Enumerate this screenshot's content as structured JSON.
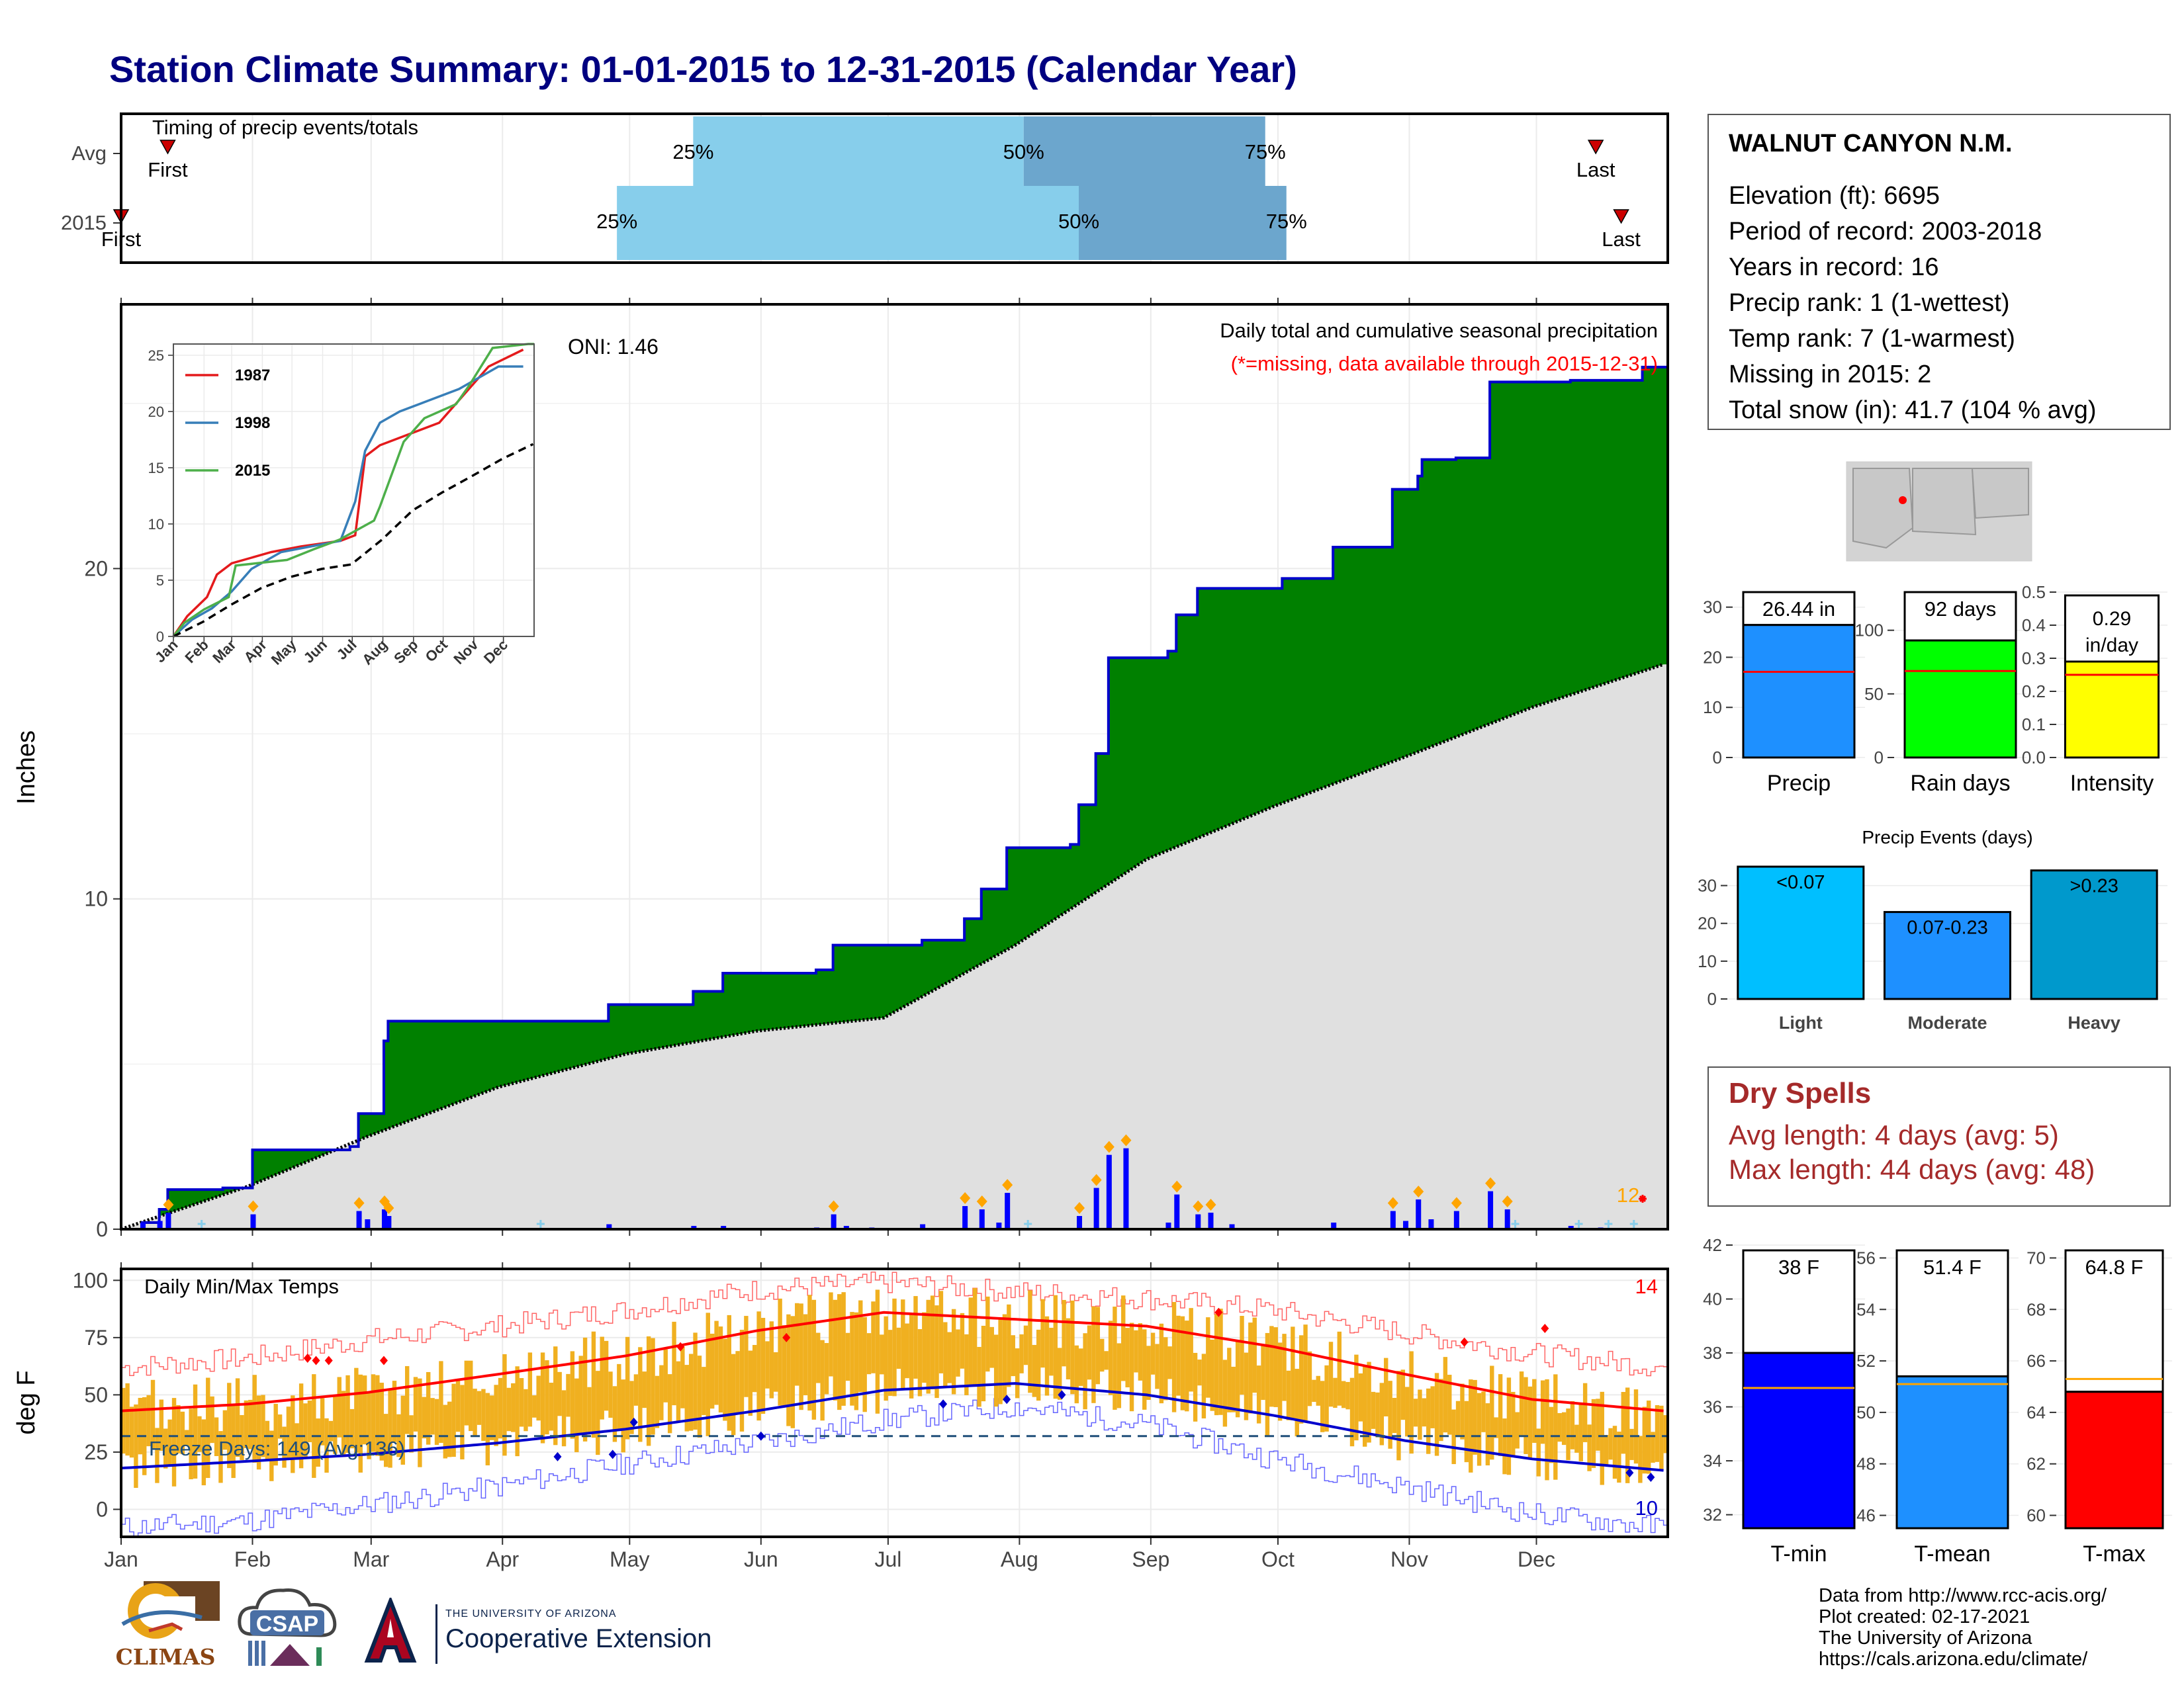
{
  "title": "Station Climate Summary: 01-01-2015 to 12-31-2015 (Calendar Year)",
  "station": {
    "name": "WALNUT CANYON N.M.",
    "lines": [
      "Elevation (ft): 6695",
      "Period of record: 2003-2018",
      "Years in record: 16",
      "Precip rank: 1 (1-wettest)",
      "Temp rank: 7 (1-warmest)",
      "Missing in 2015: 2",
      "Total snow (in): 41.7 (104 % avg)"
    ]
  },
  "dry_spells": {
    "title": "Dry Spells",
    "avg_length": "Avg length: 4 days (avg: 5)",
    "max_length": "Max length: 44 days (avg: 48)"
  },
  "credits": [
    "Data from http://www.rcc-acis.org/",
    "Plot created: 02-17-2021",
    "The University of Arizona",
    "https://cals.arizona.edu/climate/"
  ],
  "logos": {
    "climas": "CLIMAS",
    "csap": "CSAP",
    "ua_small": "THE UNIVERSITY OF ARIZONA",
    "ua_big": "Cooperative Extension"
  },
  "colors": {
    "title": "#000080",
    "cumulative_fill": "#008000",
    "normal_fill": "#e0e0e0",
    "precip_bar": "#0000ff",
    "temp_bar": "#f0b020",
    "tmax_line": "#ff0000",
    "tmin_line": "#0000cc",
    "light_bar": "#00bfff",
    "moderate_bar": "#1e90ff",
    "heavy_bar": "#0099cc",
    "precip_box": "#1e90ff",
    "raindays_box": "#00ff00",
    "intensity_box": "#ffff00",
    "tmin_box": "#0000ff",
    "tmean_box": "#1e90ff",
    "tmax_box": "#ff0000"
  },
  "months": [
    "Jan",
    "Feb",
    "Mar",
    "Apr",
    "May",
    "Jun",
    "Jul",
    "Aug",
    "Sep",
    "Oct",
    "Nov",
    "Dec"
  ],
  "chart_data": [
    {
      "type": "bar",
      "panel": "timing",
      "title": "Timing of precip events/totals",
      "rows": [
        "Avg",
        "2015"
      ],
      "markers": {
        "Avg": {
          "first_doy": 12,
          "last_doy": 349,
          "first_label": "First",
          "last_label": "Last"
        },
        "2015": {
          "first_doy": 1,
          "last_doy": 355,
          "first_label": "First",
          "last_label": "Last"
        }
      },
      "quartiles": {
        "Avg": {
          "q25_doy": 136,
          "q50_doy": 214,
          "q75_doy": 271
        },
        "2015": {
          "q25_doy": 118,
          "q50_doy": 227,
          "q75_doy": 276
        }
      },
      "quartile_labels": [
        "25%",
        "50%",
        "75%"
      ]
    },
    {
      "type": "area",
      "panel": "cumulative_precip",
      "title": "Daily total and cumulative seasonal precipitation",
      "subtitle": "(*=missing, data available through 2015-12-31)",
      "oni": "ONI: 1.46",
      "ylabel": "Inches",
      "ylim": [
        0,
        28
      ],
      "yticks": [
        0,
        10,
        20
      ],
      "missing_count_label": "12",
      "cumulative_2015_steps": [
        [
          1,
          0
        ],
        [
          6,
          0.2
        ],
        [
          10,
          0.6
        ],
        [
          12,
          1.2
        ],
        [
          25,
          1.25
        ],
        [
          32,
          2.4
        ],
        [
          55,
          2.5
        ],
        [
          57,
          3.5
        ],
        [
          63,
          5.7
        ],
        [
          64,
          6.3
        ],
        [
          116,
          6.8
        ],
        [
          136,
          7.2
        ],
        [
          143,
          7.75
        ],
        [
          165,
          7.85
        ],
        [
          169,
          8.6
        ],
        [
          190,
          8.75
        ],
        [
          200,
          9.4
        ],
        [
          204,
          10.3
        ],
        [
          210,
          11.55
        ],
        [
          225,
          11.65
        ],
        [
          227,
          12.85
        ],
        [
          231,
          14.4
        ],
        [
          234,
          17.3
        ],
        [
          248,
          17.5
        ],
        [
          250,
          18.6
        ],
        [
          255,
          19.4
        ],
        [
          275,
          19.7
        ],
        [
          287,
          20.65
        ],
        [
          301,
          22.4
        ],
        [
          307,
          22.8
        ],
        [
          308,
          23.3
        ],
        [
          316,
          23.35
        ],
        [
          324,
          25.65
        ],
        [
          343,
          25.7
        ],
        [
          360,
          26.1
        ],
        [
          366,
          26.44
        ]
      ],
      "normal_cumulative": [
        [
          1,
          0
        ],
        [
          31,
          1.3
        ],
        [
          59,
          2.8
        ],
        [
          90,
          4.3
        ],
        [
          120,
          5.3
        ],
        [
          151,
          6.0
        ],
        [
          181,
          6.4
        ],
        [
          212,
          8.6
        ],
        [
          243,
          11.2
        ],
        [
          273,
          12.8
        ],
        [
          304,
          14.3
        ],
        [
          334,
          15.8
        ],
        [
          365,
          17.1
        ]
      ],
      "daily_precip": [
        [
          6,
          0.2
        ],
        [
          10,
          0.25
        ],
        [
          12,
          0.5
        ],
        [
          32,
          0.45
        ],
        [
          57,
          0.55
        ],
        [
          59,
          0.3
        ],
        [
          63,
          0.6
        ],
        [
          64,
          0.4
        ],
        [
          116,
          0.15
        ],
        [
          136,
          0.1
        ],
        [
          143,
          0.1
        ],
        [
          165,
          0.05
        ],
        [
          169,
          0.45
        ],
        [
          172,
          0.1
        ],
        [
          178,
          0.05
        ],
        [
          190,
          0.15
        ],
        [
          200,
          0.7
        ],
        [
          204,
          0.6
        ],
        [
          208,
          0.2
        ],
        [
          210,
          1.1
        ],
        [
          227,
          0.4
        ],
        [
          231,
          1.25
        ],
        [
          234,
          2.25
        ],
        [
          238,
          2.45
        ],
        [
          248,
          0.2
        ],
        [
          250,
          1.05
        ],
        [
          255,
          0.45
        ],
        [
          258,
          0.5
        ],
        [
          263,
          0.15
        ],
        [
          287,
          0.2
        ],
        [
          301,
          0.55
        ],
        [
          304,
          0.25
        ],
        [
          307,
          0.9
        ],
        [
          310,
          0.3
        ],
        [
          316,
          0.55
        ],
        [
          324,
          1.15
        ],
        [
          328,
          0.6
        ],
        [
          343,
          0.1
        ],
        [
          350,
          0.05
        ]
      ],
      "inset": {
        "years": [
          "1987",
          "1998",
          "2015"
        ],
        "ylim": [
          0,
          26
        ],
        "yticks": [
          0,
          5,
          10,
          15,
          20,
          25
        ],
        "xticks": [
          "Jan",
          "Feb",
          "Mar",
          "Apr",
          "May",
          "Jun",
          "Jul",
          "Aug",
          "Sep",
          "Oct",
          "Nov",
          "Dec"
        ],
        "series": [
          {
            "name": "1987",
            "color": "#e41a1c",
            "values": [
              [
                1,
                0
              ],
              [
                15,
                1.8
              ],
              [
                35,
                3.5
              ],
              [
                45,
                5.5
              ],
              [
                60,
                6.5
              ],
              [
                80,
                7
              ],
              [
                100,
                7.5
              ],
              [
                130,
                8
              ],
              [
                170,
                8.5
              ],
              [
                185,
                9
              ],
              [
                195,
                16
              ],
              [
                210,
                17
              ],
              [
                240,
                18
              ],
              [
                270,
                19
              ],
              [
                300,
                22
              ],
              [
                320,
                24
              ],
              [
                355,
                25.5
              ]
            ]
          },
          {
            "name": "1998",
            "color": "#377eb8",
            "values": [
              [
                1,
                0
              ],
              [
                20,
                1.5
              ],
              [
                40,
                2.5
              ],
              [
                60,
                4
              ],
              [
                80,
                6
              ],
              [
                110,
                7.5
              ],
              [
                140,
                8
              ],
              [
                170,
                8.5
              ],
              [
                185,
                12
              ],
              [
                195,
                16.5
              ],
              [
                210,
                19
              ],
              [
                230,
                20
              ],
              [
                260,
                21
              ],
              [
                290,
                22
              ],
              [
                310,
                23
              ],
              [
                330,
                24
              ],
              [
                355,
                24
              ]
            ]
          },
          {
            "name": "2015",
            "color": "#4daf4a",
            "values": [
              [
                1,
                0
              ],
              [
                12,
                1.2
              ],
              [
                32,
                2.4
              ],
              [
                57,
                3.5
              ],
              [
                64,
                6.3
              ],
              [
                116,
                6.8
              ],
              [
                143,
                7.75
              ],
              [
                169,
                8.6
              ],
              [
                204,
                10.3
              ],
              [
                210,
                11.55
              ],
              [
                234,
                17.3
              ],
              [
                255,
                19.4
              ],
              [
                287,
                20.65
              ],
              [
                301,
                22.4
              ],
              [
                324,
                25.65
              ],
              [
                360,
                26.1
              ],
              [
                366,
                26.44
              ]
            ]
          },
          {
            "name": "avg",
            "color": "#000000",
            "dashed": true,
            "values": [
              [
                1,
                0
              ],
              [
                31,
                1.3
              ],
              [
                59,
                2.8
              ],
              [
                90,
                4.3
              ],
              [
                120,
                5.3
              ],
              [
                151,
                6.0
              ],
              [
                181,
                6.4
              ],
              [
                212,
                8.6
              ],
              [
                243,
                11.2
              ],
              [
                273,
                12.8
              ],
              [
                304,
                14.3
              ],
              [
                334,
                15.8
              ],
              [
                365,
                17.1
              ]
            ]
          }
        ]
      }
    },
    {
      "type": "line",
      "panel": "temperature",
      "title": "Daily Min/Max Temps",
      "ylabel": "deg F",
      "ylim": [
        -12,
        105
      ],
      "yticks": [
        0,
        25,
        50,
        75,
        100
      ],
      "freeze_days_label": "Freeze Days: 149 (Avg:136)",
      "freeze_line": 32,
      "missing_max_label": "14",
      "missing_min_label": "10",
      "normal_max": [
        [
          1,
          43
        ],
        [
          31,
          46
        ],
        [
          59,
          51
        ],
        [
          90,
          59
        ],
        [
          120,
          67
        ],
        [
          151,
          78
        ],
        [
          181,
          86
        ],
        [
          212,
          83
        ],
        [
          243,
          80
        ],
        [
          273,
          71
        ],
        [
          304,
          59
        ],
        [
          334,
          48
        ],
        [
          365,
          43
        ]
      ],
      "normal_min": [
        [
          1,
          18
        ],
        [
          31,
          21
        ],
        [
          59,
          24
        ],
        [
          90,
          29
        ],
        [
          120,
          35
        ],
        [
          151,
          43
        ],
        [
          181,
          52
        ],
        [
          212,
          55
        ],
        [
          243,
          50
        ],
        [
          273,
          41
        ],
        [
          304,
          30
        ],
        [
          334,
          22
        ],
        [
          365,
          17
        ]
      ],
      "record_max": [
        [
          1,
          62
        ],
        [
          31,
          66
        ],
        [
          59,
          74
        ],
        [
          90,
          80
        ],
        [
          120,
          87
        ],
        [
          151,
          96
        ],
        [
          181,
          99
        ],
        [
          212,
          95
        ],
        [
          243,
          92
        ],
        [
          273,
          87
        ],
        [
          304,
          77
        ],
        [
          334,
          68
        ],
        [
          365,
          62
        ]
      ],
      "record_min": [
        [
          1,
          -8
        ],
        [
          31,
          -5
        ],
        [
          59,
          2
        ],
        [
          90,
          10
        ],
        [
          120,
          20
        ],
        [
          151,
          29
        ],
        [
          181,
          39
        ],
        [
          212,
          45
        ],
        [
          243,
          37
        ],
        [
          273,
          22
        ],
        [
          304,
          10
        ],
        [
          334,
          -2
        ],
        [
          365,
          -8
        ]
      ]
    },
    {
      "type": "bar",
      "panel": "summary_precip",
      "categories": [
        "Precip",
        "Rain days",
        "Intensity"
      ],
      "values": [
        26.44,
        92,
        0.29
      ],
      "averages": [
        17.1,
        68,
        0.25
      ],
      "labels": [
        "26.44 in",
        "92 days",
        "0.29 in/day"
      ],
      "ylims": [
        [
          0,
          33
        ],
        [
          0,
          130
        ],
        [
          0,
          0.5
        ]
      ],
      "yticks": [
        [
          0,
          10,
          20,
          30
        ],
        [
          0,
          50,
          100
        ],
        [
          0.0,
          0.1,
          0.2,
          0.3,
          0.4,
          0.5
        ]
      ]
    },
    {
      "type": "bar",
      "panel": "precip_events",
      "title": "Precip Events (days)",
      "categories": [
        "Light",
        "Moderate",
        "Heavy"
      ],
      "bar_labels": [
        "<0.07",
        "0.07-0.23",
        ">0.23"
      ],
      "values": [
        35,
        23,
        34
      ],
      "ylim": [
        0,
        35
      ],
      "yticks": [
        0,
        10,
        20,
        30
      ]
    },
    {
      "type": "bar",
      "panel": "summary_temp",
      "categories": [
        "T-min",
        "T-mean",
        "T-max"
      ],
      "values": [
        38,
        51.4,
        64.8
      ],
      "averages": [
        36.7,
        51.1,
        65.3
      ],
      "labels": [
        "38 F",
        "51.4 F",
        "64.8 F"
      ],
      "ylims": [
        [
          31.5,
          42
        ],
        [
          45.5,
          56.5
        ],
        [
          59.5,
          70.5
        ]
      ],
      "yticks": [
        [
          32,
          34,
          36,
          38,
          40,
          42
        ],
        [
          46,
          48,
          50,
          52,
          54,
          56
        ],
        [
          60,
          62,
          64,
          66,
          68,
          70
        ]
      ]
    }
  ]
}
